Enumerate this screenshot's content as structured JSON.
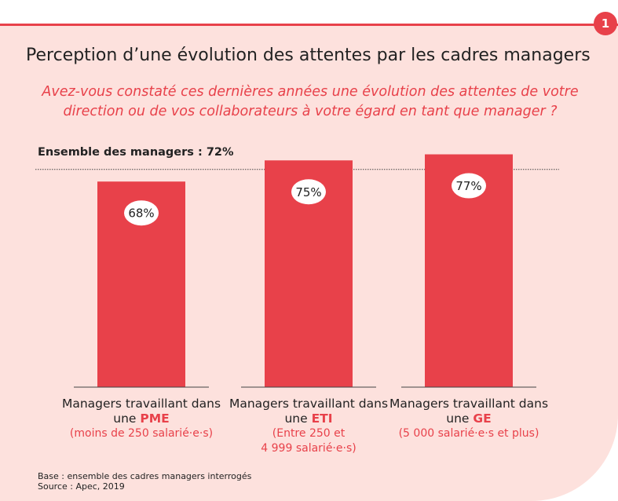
{
  "chart_data": {
    "type": "bar",
    "badge": "1",
    "title": "Perception d’une évolution des attentes par les cadres managers",
    "subtitle": "Avez-vous constaté ces dernières années une évolution des attentes de votre direction ou de vos collaborateurs à votre égard en tant que manager ?",
    "category_prefix": "Managers travaillant dans une",
    "categories": [
      "PME",
      "ETI",
      "GE"
    ],
    "category_notes": [
      [
        "(moins de 250 salarié·e·s)"
      ],
      [
        "(Entre 250 et",
        "4 999 salarié·e·s)"
      ],
      [
        "(5 000 salarié·e·s et plus)"
      ]
    ],
    "values": [
      68,
      75,
      77
    ],
    "value_labels": [
      "68%",
      "75%",
      "77%"
    ],
    "color": "#e8414a",
    "reference": {
      "value": 72,
      "label": "Ensemble des managers : 72%"
    },
    "notes": [
      "Base : ensemble des cadres managers interrogés",
      "Source : Apec, 2019"
    ]
  }
}
